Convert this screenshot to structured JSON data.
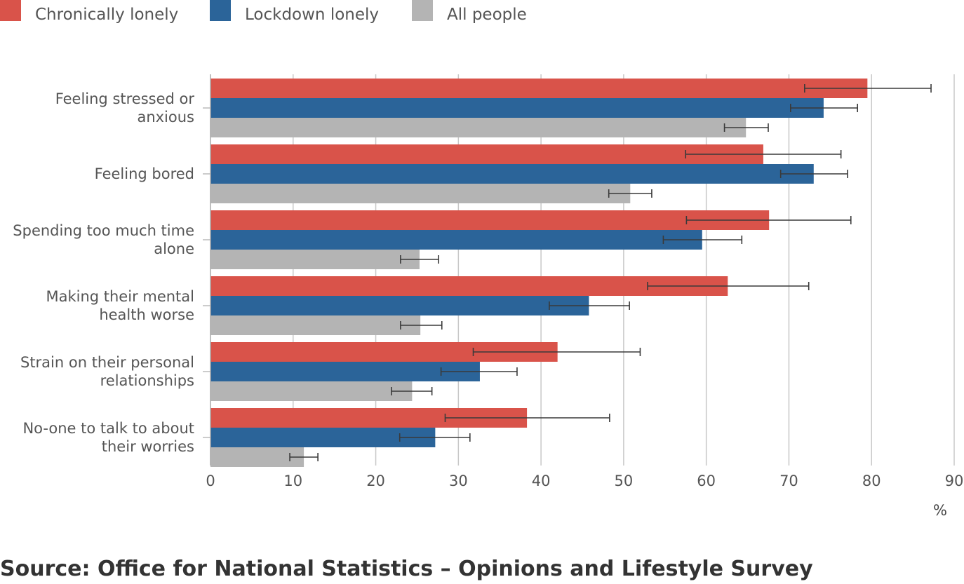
{
  "chart_data": {
    "type": "bar",
    "orientation": "horizontal",
    "categories": [
      [
        "Feeling stressed or",
        "anxious"
      ],
      [
        "Feeling bored"
      ],
      [
        "Spending too much time",
        "alone"
      ],
      [
        "Making their mental",
        "health worse"
      ],
      [
        "Strain on their personal",
        "relationships"
      ],
      [
        "No-one to talk to about",
        "their worries"
      ]
    ],
    "series": [
      {
        "name": "Chronically lonely",
        "color": "#d9534a",
        "values": [
          79.5,
          66.9,
          67.6,
          62.6,
          42.0,
          38.3
        ],
        "ci_low": [
          71.9,
          57.5,
          57.6,
          52.9,
          31.8,
          28.4
        ],
        "ci_high": [
          87.2,
          76.3,
          77.5,
          72.4,
          52.0,
          48.3
        ]
      },
      {
        "name": "Lockdown lonely",
        "color": "#2b6499",
        "values": [
          74.2,
          73.0,
          59.5,
          45.8,
          32.6,
          27.2
        ],
        "ci_low": [
          70.2,
          69.0,
          54.8,
          41.0,
          27.9,
          22.9
        ],
        "ci_high": [
          78.3,
          77.1,
          64.3,
          50.7,
          37.1,
          31.4
        ]
      },
      {
        "name": "All people",
        "color": "#b4b4b4",
        "values": [
          64.8,
          50.8,
          25.3,
          25.4,
          24.4,
          11.3
        ],
        "ci_low": [
          62.2,
          48.2,
          23.0,
          23.0,
          21.9,
          9.6
        ],
        "ci_high": [
          67.5,
          53.4,
          27.6,
          28.0,
          26.8,
          13.0
        ]
      }
    ],
    "xlim": [
      0,
      90
    ],
    "xticks": [
      0,
      10,
      20,
      30,
      40,
      50,
      60,
      70,
      80,
      90
    ],
    "xlabel": "%",
    "grid": "vertical",
    "legend_position": "top-left",
    "source": "Source: Office for National Statistics – Opinions and Lifestyle Survey"
  }
}
